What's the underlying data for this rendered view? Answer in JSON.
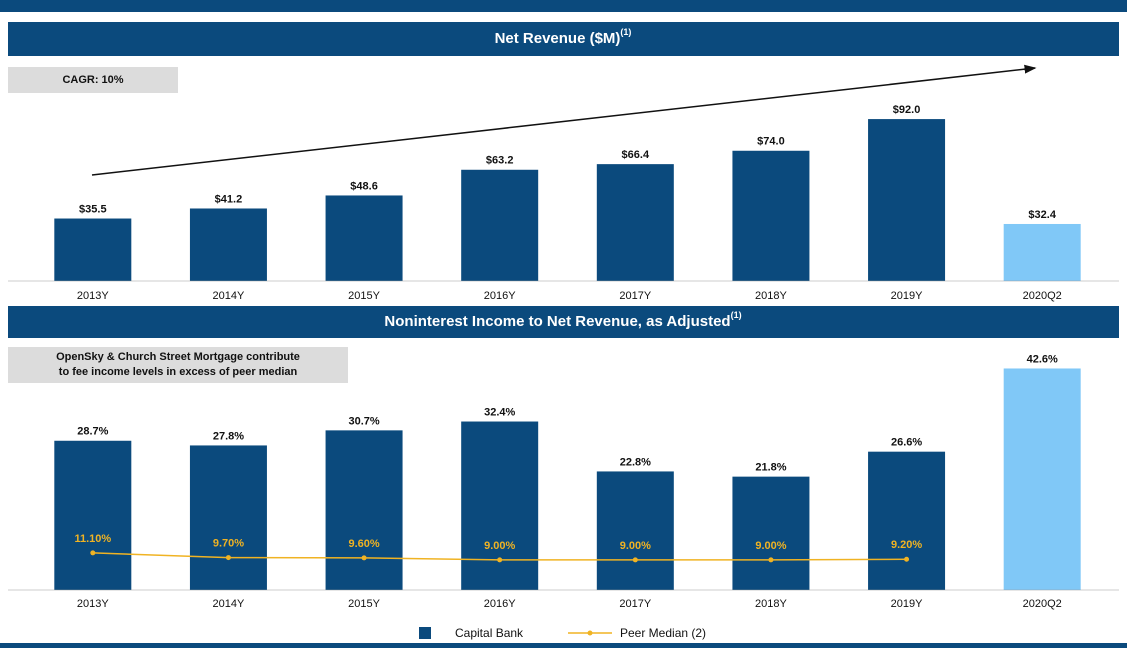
{
  "chart_data": [
    {
      "type": "bar",
      "title": "Net Revenue ($M)",
      "title_note": "(1)",
      "annotation": "CAGR: 10%",
      "categories": [
        "2013Y",
        "2014Y",
        "2015Y",
        "2016Y",
        "2017Y",
        "2018Y",
        "2019Y",
        "2020Q2"
      ],
      "values": [
        35.5,
        41.2,
        48.6,
        63.2,
        66.4,
        74.0,
        92.0,
        32.4
      ],
      "value_labels": [
        "$35.5",
        "$41.2",
        "$48.6",
        "$63.2",
        "$66.4",
        "$74.0",
        "$92.0",
        "$32.4"
      ],
      "colors": [
        "#0b4a7d",
        "#0b4a7d",
        "#0b4a7d",
        "#0b4a7d",
        "#0b4a7d",
        "#0b4a7d",
        "#0b4a7d",
        "#80c8f7"
      ],
      "ylim": [
        0,
        100
      ]
    },
    {
      "type": "bar_line",
      "title": "Noninterest Income to Net Revenue, as Adjusted",
      "title_note": "(1)",
      "annotation": [
        "OpenSky & Church Street Mortgage contribute",
        "to fee income levels in excess of peer median"
      ],
      "categories": [
        "2013Y",
        "2014Y",
        "2015Y",
        "2016Y",
        "2017Y",
        "2018Y",
        "2019Y",
        "2020Q2"
      ],
      "series": [
        {
          "name": "Capital Bank",
          "color": "#0b4a7d",
          "colors": [
            "#0b4a7d",
            "#0b4a7d",
            "#0b4a7d",
            "#0b4a7d",
            "#0b4a7d",
            "#0b4a7d",
            "#0b4a7d",
            "#80c8f7"
          ],
          "values": [
            28.7,
            27.8,
            30.7,
            32.4,
            22.8,
            21.8,
            26.6,
            42.6
          ],
          "value_labels": [
            "28.7%",
            "27.8%",
            "30.7%",
            "32.4%",
            "22.8%",
            "21.8%",
            "26.6%",
            "42.6%"
          ]
        },
        {
          "name": "Peer Median (2)",
          "color": "#f0b323",
          "axis": "y2",
          "values": [
            11.1,
            9.7,
            9.6,
            9.0,
            9.0,
            9.0,
            9.2,
            null
          ],
          "value_labels": [
            "11.10%",
            "9.70%",
            "9.60%",
            "9.00%",
            "9.00%",
            "9.00%",
            "9.20%",
            null
          ]
        }
      ],
      "ylim": [
        0,
        45
      ],
      "y2lim": [
        0,
        70
      ]
    }
  ]
}
